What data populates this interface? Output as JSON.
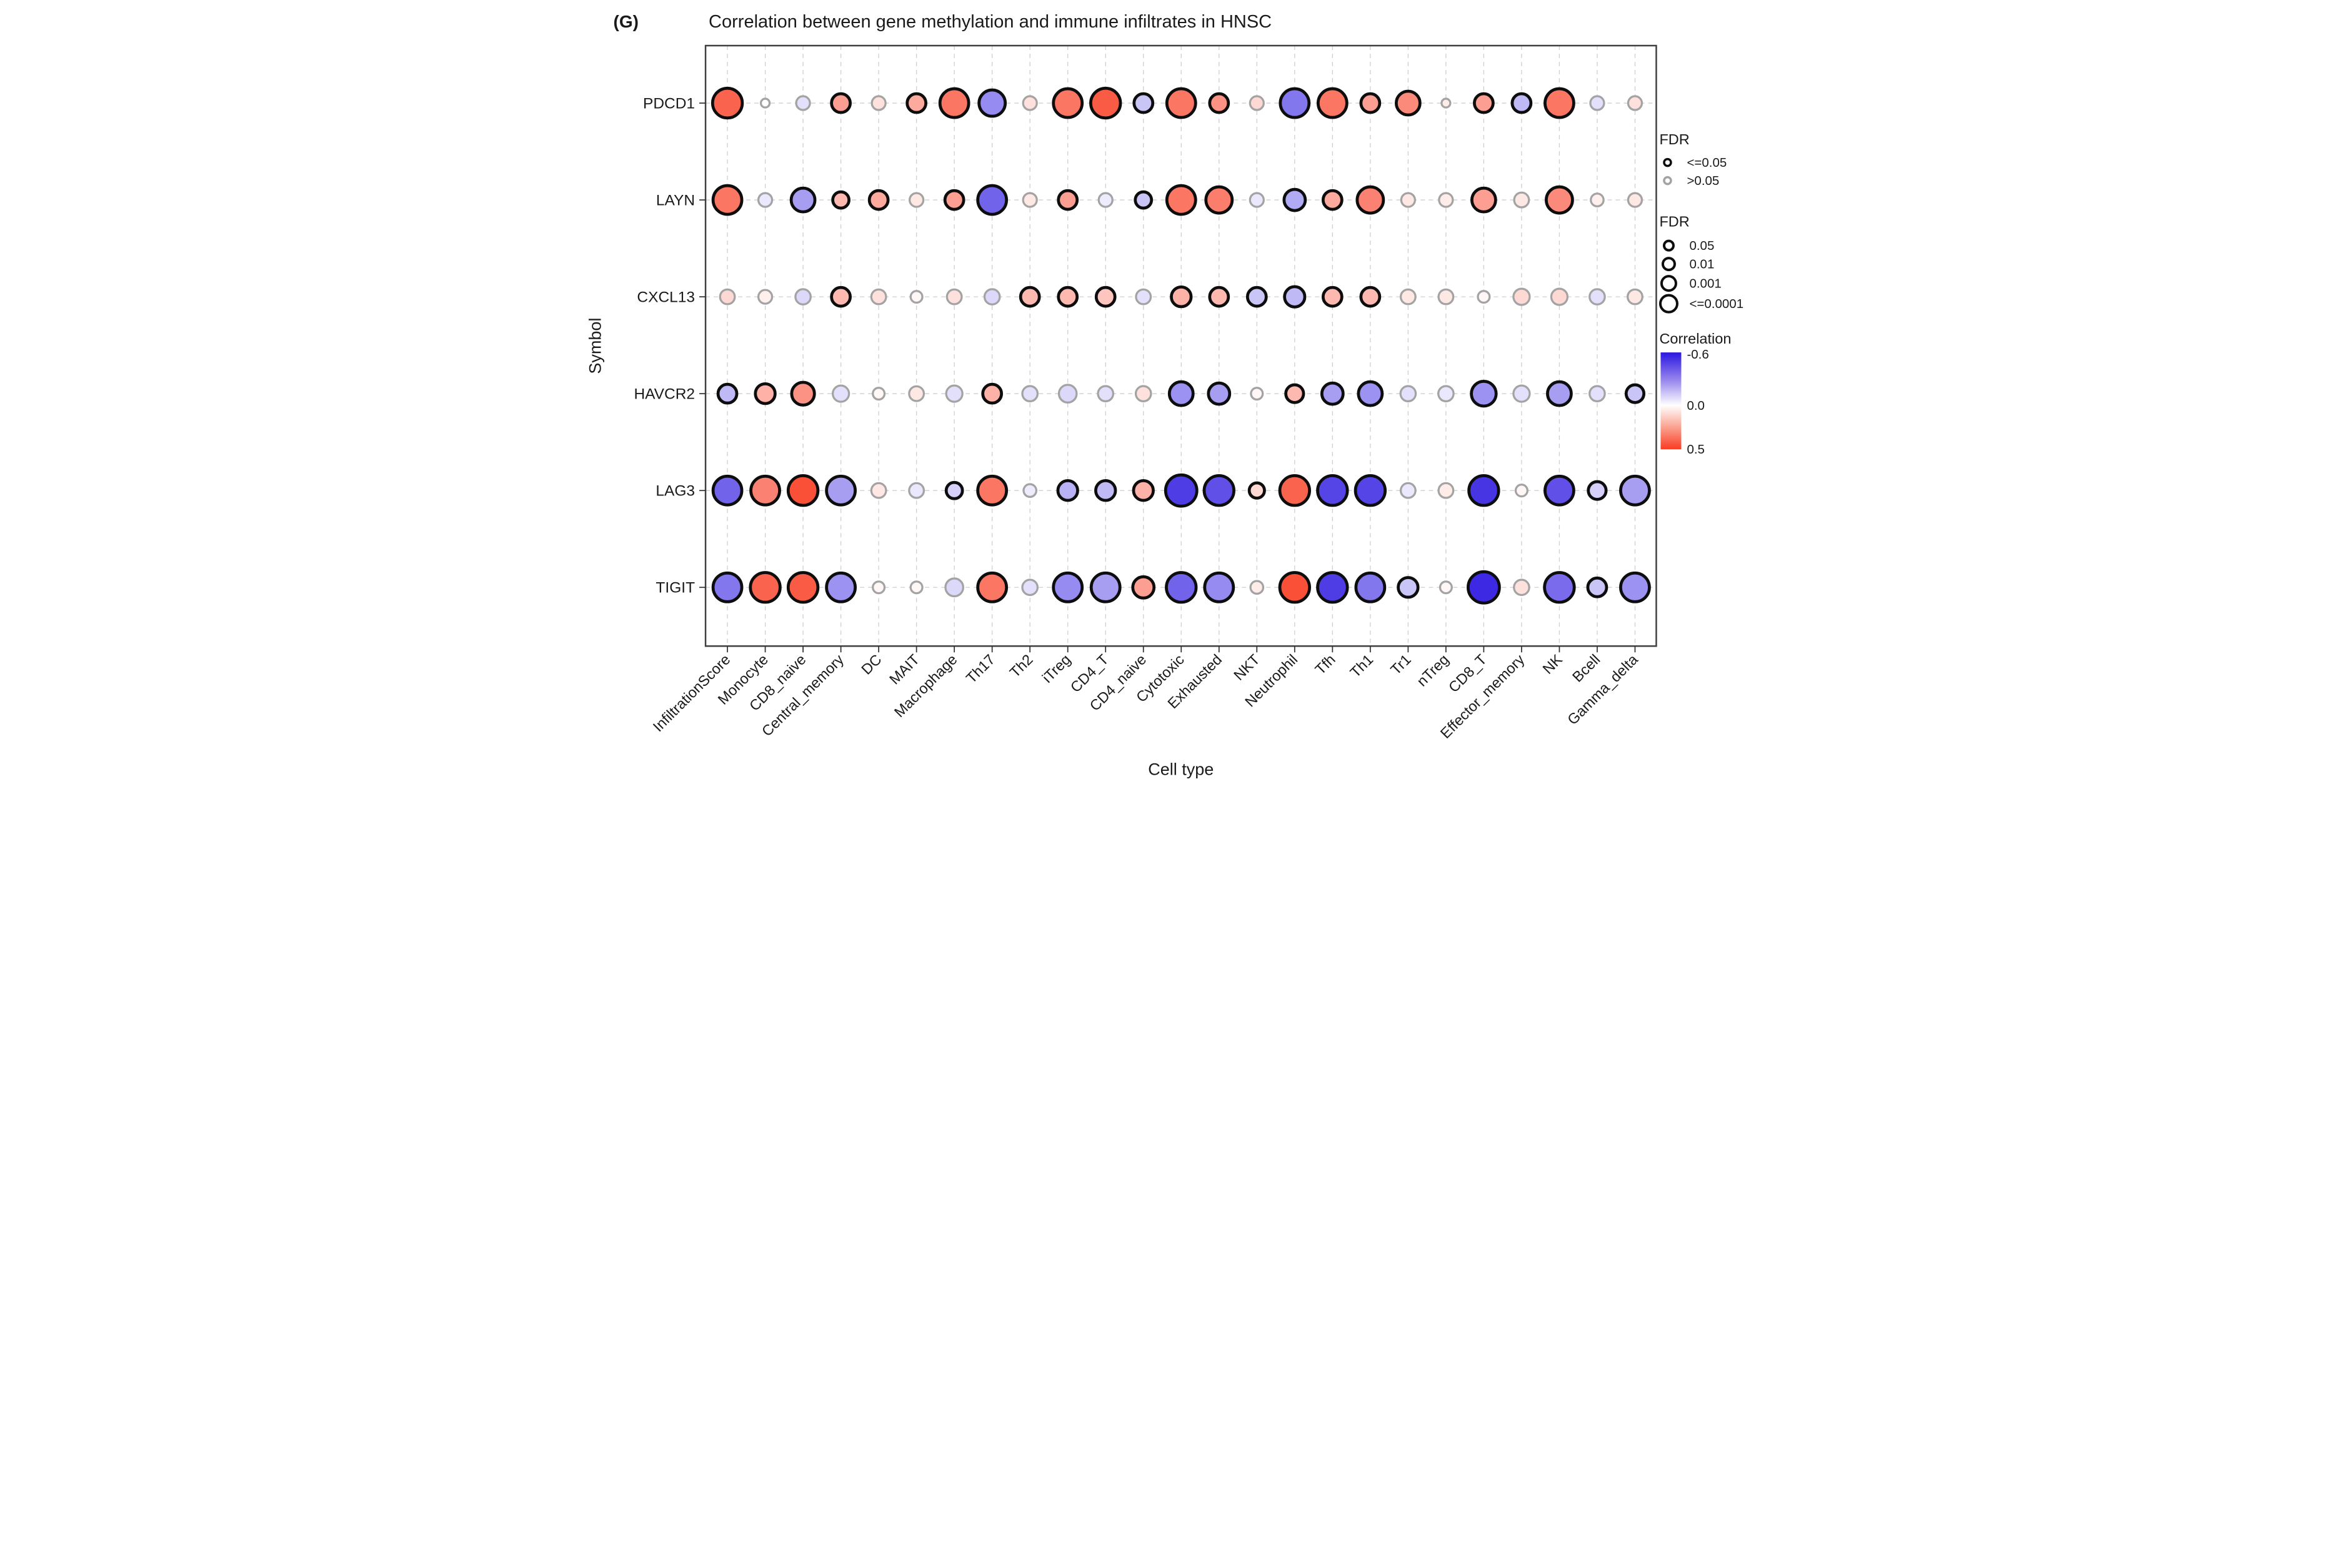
{
  "panel_label": "(G)",
  "title": "Correlation between gene methylation and immune infiltrates in HNSC",
  "axes": {
    "x_title": "Cell type",
    "y_title": "Symbol"
  },
  "legend": {
    "fdr_color": {
      "title": "FDR",
      "items": [
        {
          "label": "<=0.05",
          "ring_color": "#0d0d0d"
        },
        {
          "label": ">0.05",
          "ring_color": "#a3a3a3"
        }
      ]
    },
    "fdr_size": {
      "title": "FDR",
      "items": [
        {
          "label": "0.05",
          "size_level": 1
        },
        {
          "label": "0.01",
          "size_level": 2
        },
        {
          "label": "0.001",
          "size_level": 3
        },
        {
          "label": "<=0.0001",
          "size_level": 4
        }
      ]
    },
    "correlation": {
      "title": "Correlation",
      "tick_top": "-0.6",
      "tick_mid": "0.0",
      "tick_bottom": "0.5",
      "domain": [
        -0.6,
        0.5
      ],
      "color_negative": "#2b16e0",
      "color_zero": "#ffffff",
      "color_positive": "#f93c22"
    }
  },
  "chart_data": {
    "type": "bubble-matrix",
    "x_categories": [
      "InfiltrationScore",
      "Monocyte",
      "CD8_naive",
      "Central_memory",
      "DC",
      "MAIT",
      "Macrophage",
      "Th17",
      "Th2",
      "iTreg",
      "CD4_T",
      "CD4_naive",
      "Cytotoxic",
      "Exhausted",
      "NKT",
      "Neutrophil",
      "Tfh",
      "Th1",
      "Tr1",
      "nTreg",
      "CD8_T",
      "Effector_memory",
      "NK",
      "Bcell",
      "Gamma_delta"
    ],
    "y_categories": [
      "PDCD1",
      "LAYN",
      "CXCL13",
      "HAVCR2",
      "LAG3",
      "TIGIT"
    ],
    "cell_format": [
      "correlation_estimate",
      "fdr_size_level_0_to_5",
      "fdr_significant_le_0.05"
    ],
    "rows": {
      "PDCD1": [
        [
          0.4,
          4.2,
          1
        ],
        [
          0.0,
          0,
          0
        ],
        [
          -0.08,
          1,
          0
        ],
        [
          0.25,
          2,
          1
        ],
        [
          0.08,
          1,
          0
        ],
        [
          0.22,
          2,
          1
        ],
        [
          0.35,
          4,
          1
        ],
        [
          -0.3,
          3.5,
          1
        ],
        [
          0.08,
          1,
          0
        ],
        [
          0.35,
          4,
          1
        ],
        [
          0.42,
          4.2,
          1
        ],
        [
          -0.15,
          2,
          1
        ],
        [
          0.35,
          4,
          1
        ],
        [
          0.28,
          2,
          1
        ],
        [
          0.1,
          1,
          0
        ],
        [
          -0.35,
          4,
          1
        ],
        [
          0.35,
          4,
          1
        ],
        [
          0.25,
          2,
          1
        ],
        [
          0.3,
          3,
          1
        ],
        [
          0.05,
          0,
          0
        ],
        [
          0.25,
          2,
          1
        ],
        [
          -0.18,
          2,
          1
        ],
        [
          0.35,
          4,
          1
        ],
        [
          -0.08,
          1,
          0
        ],
        [
          0.08,
          1,
          0
        ]
      ],
      "LAYN": [
        [
          0.35,
          4,
          1
        ],
        [
          -0.06,
          1,
          0
        ],
        [
          -0.25,
          3,
          1
        ],
        [
          0.18,
          1.5,
          1
        ],
        [
          0.22,
          2,
          1
        ],
        [
          0.06,
          1,
          0
        ],
        [
          0.25,
          2,
          1
        ],
        [
          -0.4,
          4,
          1
        ],
        [
          0.06,
          1,
          0
        ],
        [
          0.25,
          2,
          1
        ],
        [
          -0.05,
          1,
          0
        ],
        [
          -0.15,
          1.5,
          1
        ],
        [
          0.35,
          4,
          1
        ],
        [
          0.33,
          3.5,
          1
        ],
        [
          -0.06,
          1,
          0
        ],
        [
          -0.22,
          2.5,
          1
        ],
        [
          0.22,
          2,
          1
        ],
        [
          0.32,
          3.5,
          1
        ],
        [
          0.06,
          1,
          0
        ],
        [
          0.05,
          1,
          0
        ],
        [
          0.25,
          3,
          1
        ],
        [
          0.06,
          1.2,
          0
        ],
        [
          0.3,
          3.5,
          1
        ],
        [
          0.04,
          0.8,
          0
        ],
        [
          0.06,
          1,
          0
        ]
      ],
      "CXCL13": [
        [
          0.1,
          1.2,
          0
        ],
        [
          0.04,
          1,
          0
        ],
        [
          -0.1,
          1.3,
          0
        ],
        [
          0.18,
          2,
          1
        ],
        [
          0.08,
          1.2,
          0
        ],
        [
          0.02,
          0.6,
          0
        ],
        [
          0.08,
          1.2,
          0
        ],
        [
          -0.1,
          1.3,
          0
        ],
        [
          0.18,
          2,
          1
        ],
        [
          0.18,
          2,
          1
        ],
        [
          0.15,
          2,
          1
        ],
        [
          -0.08,
          1.2,
          0
        ],
        [
          0.2,
          2.2,
          1
        ],
        [
          0.18,
          2,
          1
        ],
        [
          -0.15,
          2,
          1
        ],
        [
          -0.18,
          2.3,
          1
        ],
        [
          0.18,
          2,
          1
        ],
        [
          0.18,
          2,
          1
        ],
        [
          0.06,
          1.2,
          0
        ],
        [
          0.06,
          1.2,
          0
        ],
        [
          0.02,
          0.6,
          0
        ],
        [
          0.1,
          1.5,
          0
        ],
        [
          0.1,
          1.5,
          0
        ],
        [
          -0.08,
          1.3,
          0
        ],
        [
          0.06,
          1.2,
          0
        ]
      ],
      "HAVCR2": [
        [
          -0.18,
          2,
          1
        ],
        [
          0.2,
          2.2,
          1
        ],
        [
          0.28,
          2.8,
          1
        ],
        [
          -0.08,
          1.5,
          0
        ],
        [
          0.02,
          0.6,
          0
        ],
        [
          0.06,
          1.2,
          0
        ],
        [
          -0.08,
          1.5,
          0
        ],
        [
          0.2,
          2,
          1
        ],
        [
          -0.08,
          1.3,
          0
        ],
        [
          -0.1,
          1.8,
          0
        ],
        [
          -0.08,
          1.3,
          0
        ],
        [
          0.08,
          1.3,
          0
        ],
        [
          -0.28,
          3,
          1
        ],
        [
          -0.25,
          2.5,
          1
        ],
        [
          0.02,
          0.6,
          0
        ],
        [
          0.18,
          1.8,
          1
        ],
        [
          -0.25,
          2.5,
          1
        ],
        [
          -0.28,
          3,
          1
        ],
        [
          -0.08,
          1.3,
          0
        ],
        [
          -0.06,
          1.3,
          0
        ],
        [
          -0.28,
          3.2,
          1
        ],
        [
          -0.08,
          1.5,
          0
        ],
        [
          -0.25,
          3,
          1
        ],
        [
          -0.08,
          1.3,
          0
        ],
        [
          -0.15,
          1.8,
          1
        ]
      ],
      "LAG3": [
        [
          -0.4,
          4,
          1
        ],
        [
          0.32,
          4,
          1
        ],
        [
          0.45,
          4.2,
          1
        ],
        [
          -0.25,
          4,
          1
        ],
        [
          0.06,
          1.2,
          0
        ],
        [
          -0.06,
          1.2,
          0
        ],
        [
          -0.12,
          1.5,
          1
        ],
        [
          0.35,
          4,
          1
        ],
        [
          -0.05,
          0.8,
          0
        ],
        [
          -0.2,
          2.2,
          1
        ],
        [
          -0.18,
          2.2,
          1
        ],
        [
          0.2,
          2.2,
          1
        ],
        [
          -0.5,
          4.5,
          1
        ],
        [
          -0.45,
          4.2,
          1
        ],
        [
          0.1,
          1.3,
          1
        ],
        [
          0.4,
          4.2,
          1
        ],
        [
          -0.48,
          4.2,
          1
        ],
        [
          -0.48,
          4.2,
          1
        ],
        [
          -0.06,
          1.2,
          0
        ],
        [
          0.05,
          1.2,
          0
        ],
        [
          -0.52,
          4.2,
          1
        ],
        [
          0.02,
          0.6,
          0
        ],
        [
          -0.45,
          4,
          1
        ],
        [
          -0.12,
          1.8,
          1
        ],
        [
          -0.25,
          4,
          1
        ]
      ],
      "TIGIT": [
        [
          -0.35,
          4,
          1
        ],
        [
          0.4,
          4.2,
          1
        ],
        [
          0.42,
          4.2,
          1
        ],
        [
          -0.28,
          4,
          1
        ],
        [
          0.02,
          0.6,
          0
        ],
        [
          0.02,
          0.6,
          0
        ],
        [
          -0.1,
          1.8,
          0
        ],
        [
          0.35,
          4,
          1
        ],
        [
          -0.08,
          1.3,
          0
        ],
        [
          -0.3,
          4,
          1
        ],
        [
          -0.25,
          4,
          1
        ],
        [
          0.25,
          2.5,
          1
        ],
        [
          -0.4,
          4.2,
          1
        ],
        [
          -0.3,
          4,
          1
        ],
        [
          0.05,
          0.8,
          0
        ],
        [
          0.45,
          4.2,
          1
        ],
        [
          -0.5,
          4.2,
          1
        ],
        [
          -0.35,
          4,
          1
        ],
        [
          -0.15,
          2.2,
          1
        ],
        [
          0.02,
          0.6,
          0
        ],
        [
          -0.55,
          4.5,
          1
        ],
        [
          0.08,
          1.3,
          0
        ],
        [
          -0.38,
          4.2,
          1
        ],
        [
          -0.15,
          2,
          1
        ],
        [
          -0.28,
          4,
          1
        ]
      ]
    },
    "grid": "dashed light-gray per row and column",
    "panel_border_color": "#3f3f3f"
  }
}
